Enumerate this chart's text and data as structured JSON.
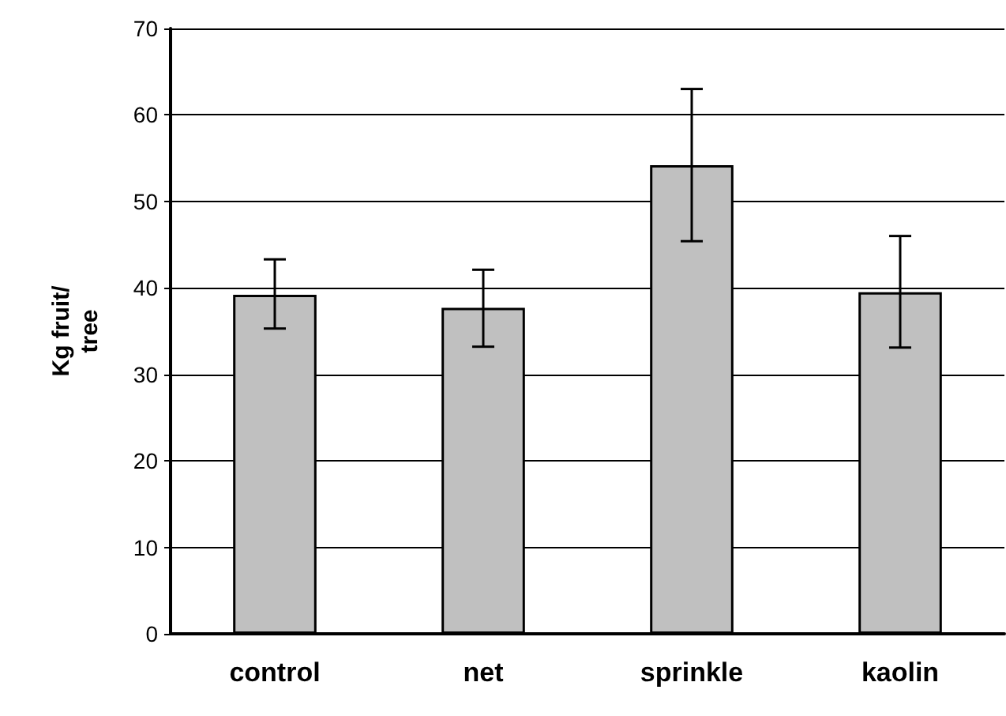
{
  "chart_data": {
    "type": "bar",
    "ylabel": "Kg fruit/\ntree",
    "categories": [
      "control",
      "net",
      "sprinkle",
      "kaolin"
    ],
    "values": [
      39.2,
      37.7,
      54.2,
      39.5
    ],
    "errors": [
      [
        35.3,
        43.3
      ],
      [
        33.2,
        42.1
      ],
      [
        45.4,
        63.0
      ],
      [
        33.1,
        46.0
      ]
    ],
    "color": "#c0c0c0",
    "ylim": [
      0,
      70
    ],
    "yticks": [
      0,
      10,
      20,
      30,
      40,
      50,
      60,
      70
    ],
    "grid": "y"
  }
}
